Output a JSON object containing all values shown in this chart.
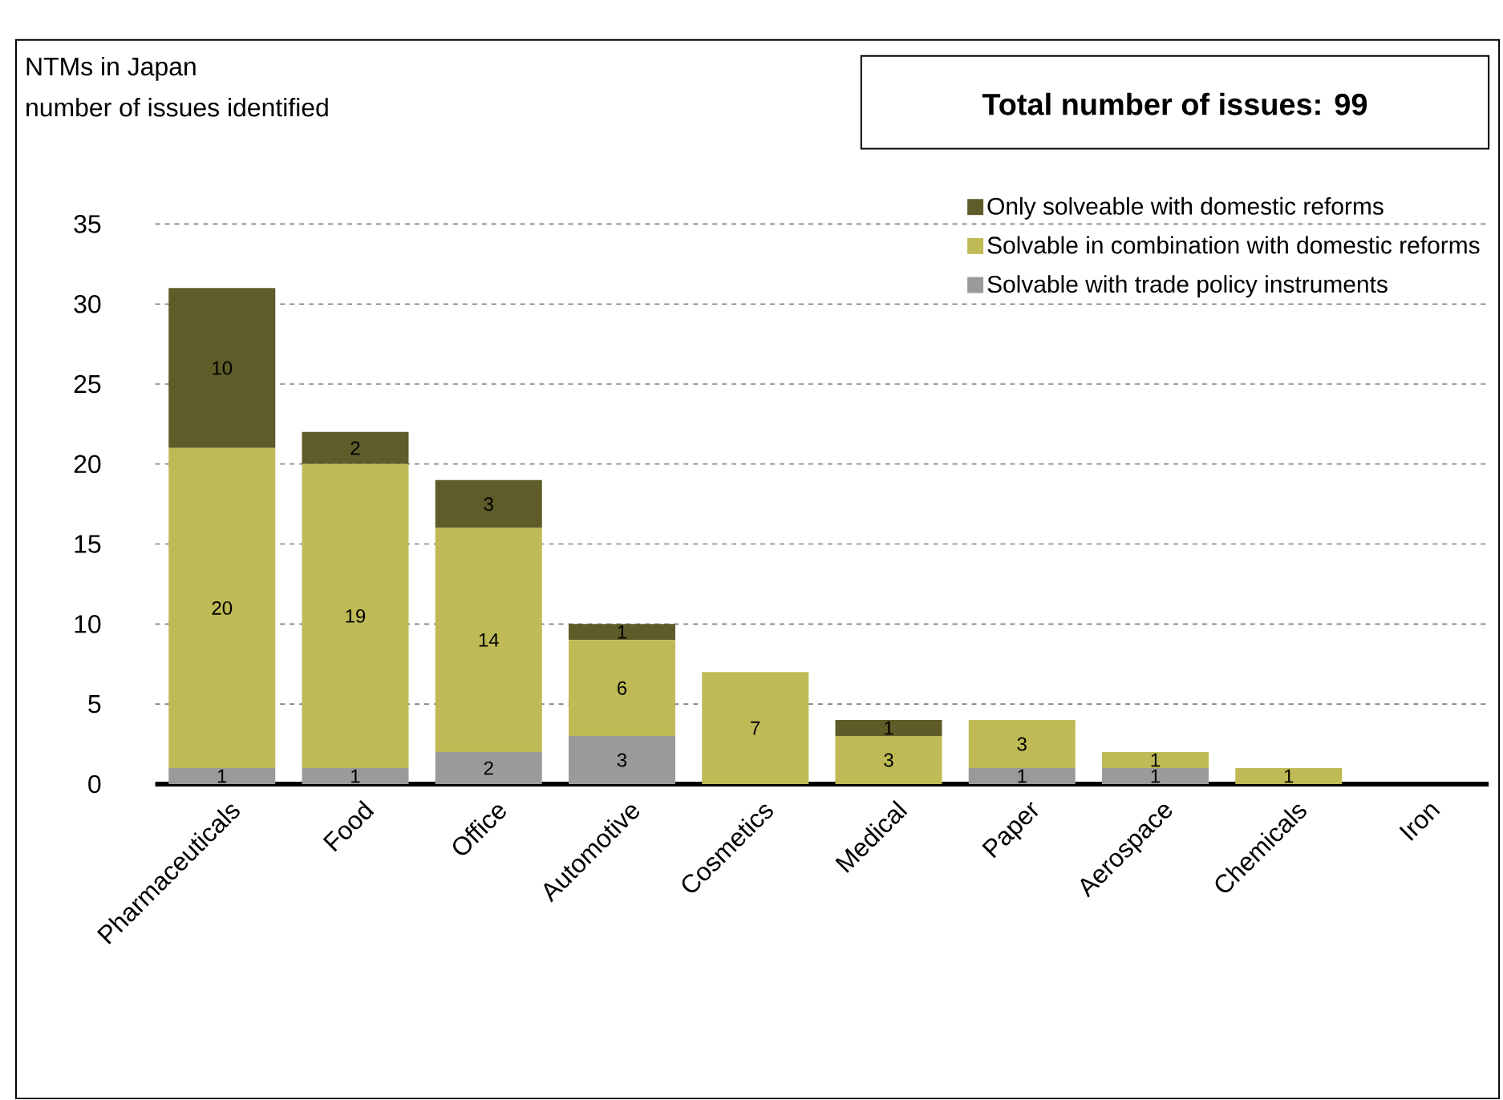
{
  "chart_data": {
    "type": "bar",
    "title": "NTMs in Japan",
    "subtitle": "number of issues identified",
    "annotations": [
      "Total number of issues: 99"
    ],
    "categories": [
      "Pharmaceuticals",
      "Food",
      "Office",
      "Automotive",
      "Cosmetics",
      "Medical",
      "Paper",
      "Aerospace",
      "Chemicals",
      "Iron"
    ],
    "stacked": true,
    "series": [
      {
        "name": "Solvable with trade policy instruments",
        "color": "#9c9a98",
        "values": [
          1,
          1,
          2,
          3,
          0,
          0,
          1,
          1,
          0,
          0
        ],
        "value_labels": [
          "1",
          "1",
          "2",
          "3",
          null,
          null,
          "1",
          "1",
          null,
          null
        ]
      },
      {
        "name": "Solvable in combination with domestic reforms",
        "color": "#bfba55",
        "values": [
          20,
          19,
          14,
          6,
          7,
          3,
          3,
          1,
          1,
          0
        ],
        "value_labels": [
          "20",
          "19",
          "14",
          "6",
          "7",
          "3",
          "3",
          "1",
          "1",
          null
        ]
      },
      {
        "name": "Only solveable with domestic reforms",
        "color": "#5e5c28",
        "values": [
          10,
          2,
          3,
          1,
          0,
          1,
          0,
          0,
          0,
          0
        ],
        "value_labels": [
          "10",
          "2",
          "3",
          "1",
          null,
          "1",
          null,
          null,
          null,
          null
        ]
      }
    ],
    "ylim": [
      0,
      35
    ],
    "yticks": [
      0,
      5,
      10,
      15,
      20,
      25,
      30,
      35
    ],
    "grid": "y",
    "legend": "top right"
  }
}
